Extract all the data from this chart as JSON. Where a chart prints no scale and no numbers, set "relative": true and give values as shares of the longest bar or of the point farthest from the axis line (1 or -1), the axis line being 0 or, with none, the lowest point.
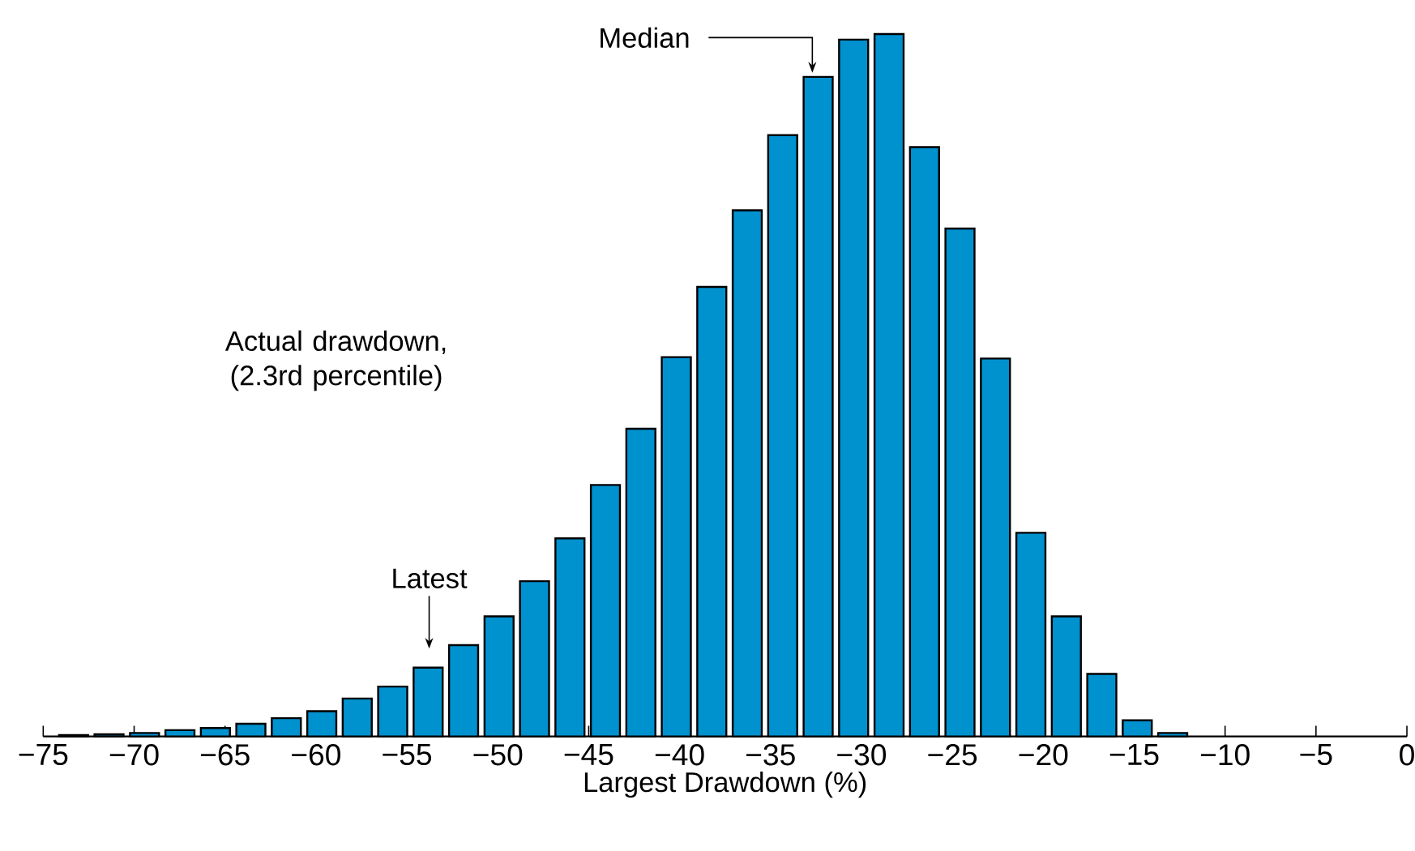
{
  "chart_data": {
    "type": "bar",
    "relative": true,
    "xlabel": "Largest Drawdown (%)",
    "color": "#0091cf",
    "x": [
      -73.33,
      -71.38,
      -69.43,
      -67.48,
      -65.53,
      -63.58,
      -61.63,
      -59.68,
      -57.73,
      -55.78,
      -53.83,
      -51.88,
      -49.93,
      -47.98,
      -46.03,
      -44.08,
      -42.13,
      -40.18,
      -38.23,
      -36.28,
      -34.33,
      -32.38,
      -30.43,
      -28.48,
      -26.53,
      -24.58,
      -22.63,
      -20.68,
      -18.73,
      -16.78,
      -14.83,
      -12.88
    ],
    "values": [
      0.002,
      0.003,
      0.005,
      0.009,
      0.012,
      0.018,
      0.026,
      0.036,
      0.054,
      0.071,
      0.098,
      0.13,
      0.171,
      0.221,
      0.282,
      0.358,
      0.438,
      0.54,
      0.64,
      0.749,
      0.856,
      0.939,
      0.992,
      1,
      0.839,
      0.723,
      0.538,
      0.29,
      0.171,
      0.089,
      0.023,
      0.005
    ],
    "xlim": [
      -75,
      0
    ],
    "xticks": [
      {
        "value": -75,
        "label": "−75"
      },
      {
        "value": -70,
        "label": "−70"
      },
      {
        "value": -65,
        "label": "−65"
      },
      {
        "value": -60,
        "label": "−60"
      },
      {
        "value": -55,
        "label": "−55"
      },
      {
        "value": -50,
        "label": "−50"
      },
      {
        "value": -45,
        "label": "−45"
      },
      {
        "value": -40,
        "label": "−40"
      },
      {
        "value": -35,
        "label": "−35"
      },
      {
        "value": -30,
        "label": "−30"
      },
      {
        "value": -25,
        "label": "−25"
      },
      {
        "value": -20,
        "label": "−20"
      },
      {
        "value": -15,
        "label": "−15"
      },
      {
        "value": -10,
        "label": "−10"
      },
      {
        "value": -5,
        "label": "−5"
      },
      {
        "value": 0,
        "label": "0"
      }
    ],
    "annotations": [
      "Median",
      "Latest",
      "Actual drawdown, (2.3rd percentile)"
    ]
  }
}
